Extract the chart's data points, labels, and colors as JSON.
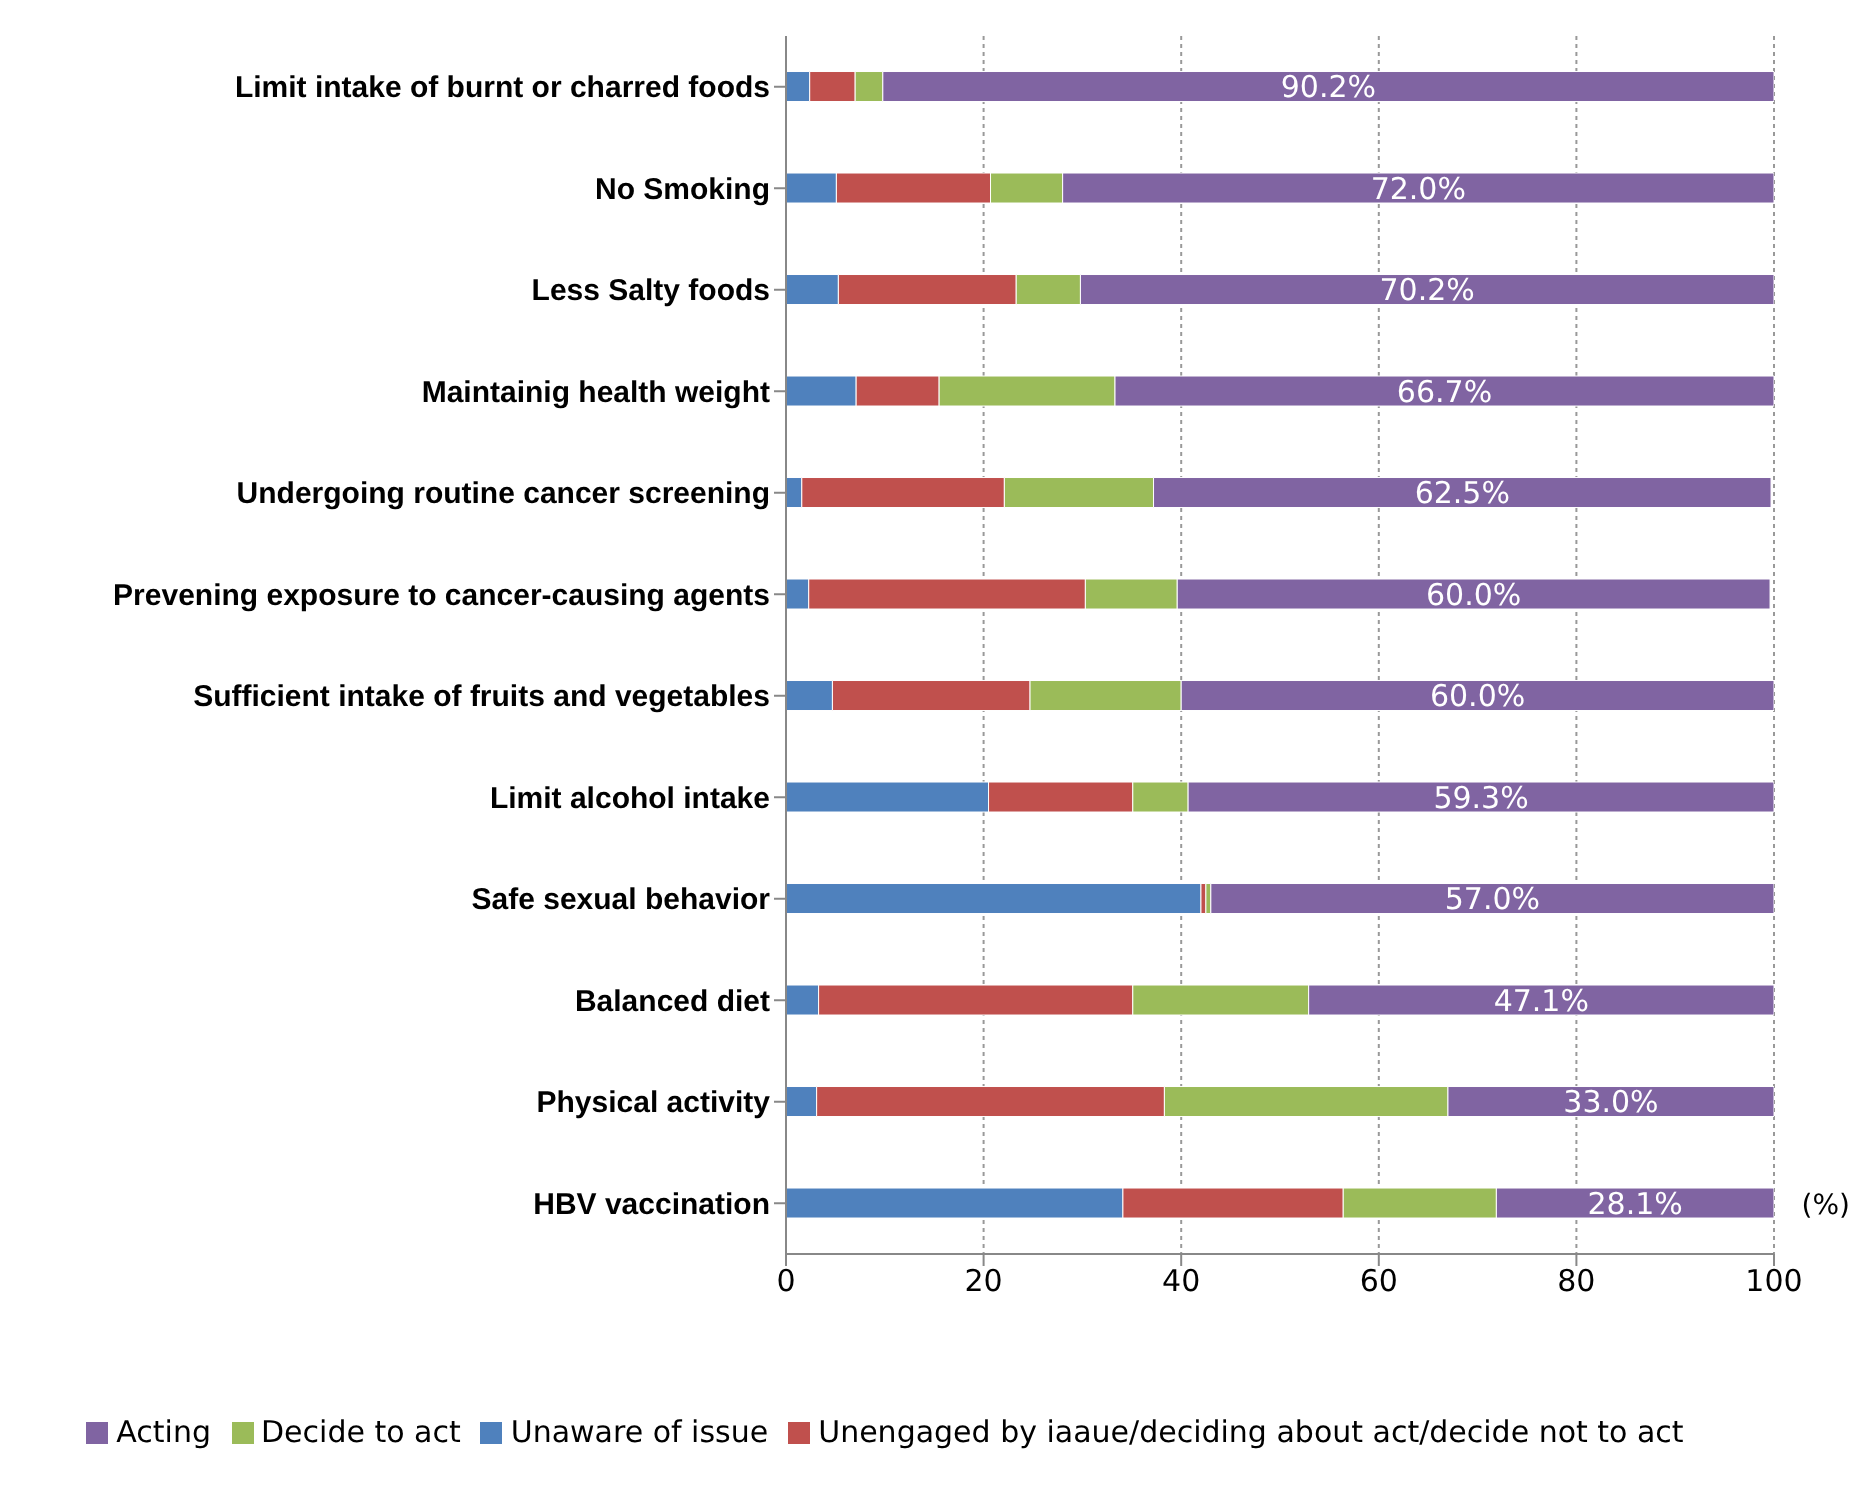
{
  "chart_data": {
    "type": "bar",
    "orientation": "horizontal",
    "stacked": true,
    "xlabel": "(%)",
    "categories": [
      "Limit intake of burnt or charred foods",
      "No Smoking",
      "Less Salty foods",
      "Maintainig health weight",
      "Undergoing routine cancer screening",
      "Prevening exposure to cancer-causing agents",
      "Sufficient intake of fruits and vegetables",
      "Limit alcohol intake",
      "Safe sexual behavior",
      "Balanced diet",
      "Physical activity",
      "HBV vaccination"
    ],
    "series": [
      {
        "name": "Unaware of issue",
        "color": "#4f81bd",
        "values": [
          2.4,
          5.1,
          5.3,
          7.1,
          1.6,
          2.3,
          4.7,
          20.5,
          42.0,
          3.3,
          3.1,
          34.1
        ]
      },
      {
        "name": "Unengaged by iaaue/deciding about act/decide not to act",
        "color": "#c0504d",
        "values": [
          4.6,
          15.6,
          18.0,
          8.4,
          20.5,
          28.0,
          20.0,
          14.6,
          0.5,
          31.8,
          35.2,
          22.3
        ]
      },
      {
        "name": "Decide to act",
        "color": "#9bbb59",
        "values": [
          2.8,
          7.3,
          6.5,
          17.8,
          15.1,
          9.3,
          15.3,
          5.6,
          0.5,
          17.8,
          28.7,
          15.5
        ]
      },
      {
        "name": "Acting",
        "color": "#8064a2",
        "values": [
          90.2,
          72.0,
          70.2,
          66.7,
          62.5,
          60.0,
          60.0,
          59.3,
          57.0,
          47.1,
          33.0,
          28.1
        ],
        "value_labels": [
          "90.2%",
          "72.0%",
          "70.2%",
          "66.7%",
          "62.5%",
          "60.0%",
          "60.0%",
          "59.3%",
          "57.0%",
          "47.1%",
          "33.0%",
          "28.1%"
        ]
      }
    ],
    "xlim": [
      0,
      100
    ],
    "xticks": [
      0,
      20,
      40,
      60,
      80,
      100
    ],
    "grid": "x",
    "legend": "bottom"
  }
}
